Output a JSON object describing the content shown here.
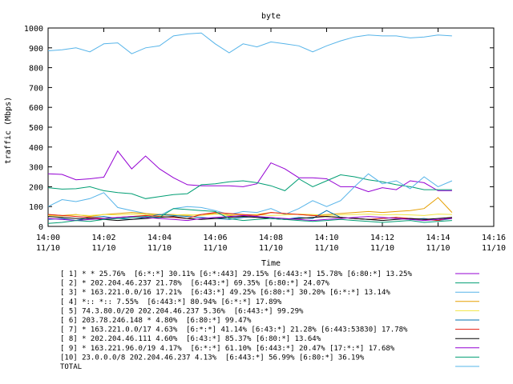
{
  "chart_data": {
    "type": "line",
    "title": "byte",
    "xlabel": "Time",
    "ylabel": "traffic (Mbps)",
    "ylim": [
      0,
      1000
    ],
    "xlim": [
      "14:00",
      "14:16"
    ],
    "yticks": [
      "0",
      "100",
      "200",
      "300",
      "400",
      "500",
      "600",
      "700",
      "800",
      "900",
      "1000"
    ],
    "xticks": [
      {
        "time": "14:00",
        "date": "11/10"
      },
      {
        "time": "14:02",
        "date": "11/10"
      },
      {
        "time": "14:04",
        "date": "11/10"
      },
      {
        "time": "14:06",
        "date": "11/10"
      },
      {
        "time": "14:08",
        "date": "11/10"
      },
      {
        "time": "14:10",
        "date": "11/10"
      },
      {
        "time": "14:12",
        "date": "11/10"
      },
      {
        "time": "14:14",
        "date": "11/10"
      },
      {
        "time": "14:16",
        "date": "11/10"
      }
    ],
    "grid": false,
    "legend_position": "bottom",
    "x": [
      "14:00:00",
      "14:00:30",
      "14:01:00",
      "14:01:30",
      "14:02:00",
      "14:02:30",
      "14:03:00",
      "14:03:30",
      "14:04:00",
      "14:04:30",
      "14:05:00",
      "14:05:30",
      "14:06:00",
      "14:06:30",
      "14:07:00",
      "14:07:30",
      "14:08:00",
      "14:08:30",
      "14:09:00",
      "14:09:30",
      "14:10:00",
      "14:10:30",
      "14:11:00",
      "14:11:30",
      "14:12:00",
      "14:12:30",
      "14:13:00",
      "14:13:30",
      "14:14:00",
      "14:14:30"
    ],
    "series": [
      {
        "name": "[ 1] * * 25.76%  [6:*:*] 30.11% [6:*:443] 29.15% [6:443:*] 15.78% [6:80:*] 13.25%",
        "color": "#9400d3",
        "values": [
          265,
          262,
          235,
          240,
          248,
          380,
          290,
          355,
          290,
          245,
          210,
          205,
          205,
          205,
          200,
          215,
          320,
          290,
          245,
          245,
          240,
          200,
          200,
          175,
          195,
          185,
          230,
          220,
          180,
          180
        ]
      },
      {
        "name": "[ 2] * 202.204.46.237 21.78%  [6:443:*] 69.35% [6:80:*] 24.07%",
        "color": "#009e73",
        "values": [
          195,
          188,
          190,
          200,
          180,
          170,
          165,
          140,
          150,
          160,
          165,
          210,
          215,
          225,
          230,
          220,
          205,
          180,
          240,
          200,
          230,
          260,
          250,
          235,
          225,
          210,
          200,
          185,
          185,
          185
        ]
      },
      {
        "name": "[ 3] * 163.221.0.0/16 17.21%  [6:43:*] 49.25% [6:80:*] 30.20% [6:*:*] 13.14%",
        "color": "#56b4e9",
        "values": [
          100,
          135,
          125,
          140,
          170,
          95,
          80,
          65,
          55,
          90,
          100,
          95,
          80,
          60,
          75,
          70,
          90,
          60,
          90,
          130,
          100,
          130,
          200,
          265,
          215,
          230,
          190,
          250,
          200,
          230
        ]
      },
      {
        "name": "[ 4] *:: *:: 7.55%  [6:443:*] 80.94% [6:*:*] 17.89%",
        "color": "#e69f00",
        "values": [
          60,
          55,
          60,
          50,
          60,
          65,
          70,
          65,
          60,
          60,
          55,
          60,
          65,
          55,
          50,
          60,
          70,
          65,
          60,
          55,
          60,
          65,
          70,
          75,
          70,
          75,
          80,
          90,
          145,
          70
        ]
      },
      {
        "name": "[ 5] 74.3.80.0/20 202.204.46.237 5.36%  [6:443:*] 99.29%",
        "color": "#f0e442",
        "values": [
          55,
          52,
          58,
          55,
          60,
          58,
          62,
          60,
          55,
          58,
          60,
          55,
          62,
          60,
          58,
          60,
          55,
          58,
          62,
          60,
          55,
          58,
          60,
          62,
          58,
          60,
          58,
          55,
          62,
          60
        ]
      },
      {
        "name": "[ 6] 203.78.246.148 * 4.80%  [6:80:*] 99.47%",
        "color": "#0072b2",
        "values": [
          35,
          40,
          30,
          45,
          50,
          40,
          35,
          45,
          60,
          55,
          50,
          45,
          40,
          35,
          45,
          50,
          40,
          35,
          45,
          40,
          80,
          45,
          40,
          35,
          40,
          45,
          35,
          40,
          30,
          40
        ]
      },
      {
        "name": "[ 7] * 163.221.0.0/17 4.63%  [6:*:*] 41.14% [6:43:*] 21.28% [6:443:53830] 17.78%",
        "color": "#e51e10",
        "values": [
          60,
          55,
          50,
          45,
          40,
          45,
          50,
          55,
          50,
          45,
          40,
          60,
          70,
          65,
          60,
          55,
          70,
          65,
          60,
          55,
          50,
          45,
          40,
          35,
          40,
          45,
          40,
          35,
          30,
          45
        ]
      },
      {
        "name": "[ 8] * 202.204.46.111 4.60%  [6:43:*] 85.37% [6:80:*] 13.64%",
        "color": "#000000",
        "values": [
          50,
          45,
          40,
          40,
          35,
          30,
          35,
          40,
          45,
          50,
          40,
          35,
          40,
          45,
          50,
          45,
          40,
          35,
          40,
          45,
          50,
          45,
          40,
          35,
          30,
          35,
          40,
          35,
          40,
          45
        ]
      },
      {
        "name": "[ 9] * 163.221.96.0/19 4.17%  [6:*:*] 61.10% [6:443:*] 20.47% [17:*:*] 17.68%",
        "color": "#9400d3",
        "values": [
          40,
          35,
          30,
          35,
          40,
          45,
          50,
          45,
          40,
          35,
          30,
          40,
          45,
          50,
          55,
          50,
          45,
          40,
          35,
          30,
          35,
          40,
          45,
          50,
          45,
          40,
          35,
          30,
          35,
          40
        ]
      },
      {
        "name": "[10] 23.0.0.0/8 202.204.46.237 4.13%  [6:443:*] 56.99% [6:80:*] 36.19%",
        "color": "#009e73",
        "values": [
          15,
          20,
          30,
          25,
          35,
          40,
          45,
          50,
          45,
          90,
          85,
          80,
          75,
          40,
          30,
          35,
          40,
          35,
          30,
          25,
          30,
          35,
          30,
          25,
          20,
          25,
          30,
          20,
          25,
          30
        ]
      },
      {
        "name": "TOTAL",
        "color": "#56b4e9",
        "values": [
          885,
          890,
          900,
          880,
          920,
          925,
          870,
          900,
          910,
          960,
          970,
          975,
          920,
          875,
          920,
          905,
          930,
          920,
          910,
          880,
          910,
          935,
          955,
          965,
          960,
          960,
          950,
          955,
          965,
          960
        ]
      }
    ]
  }
}
